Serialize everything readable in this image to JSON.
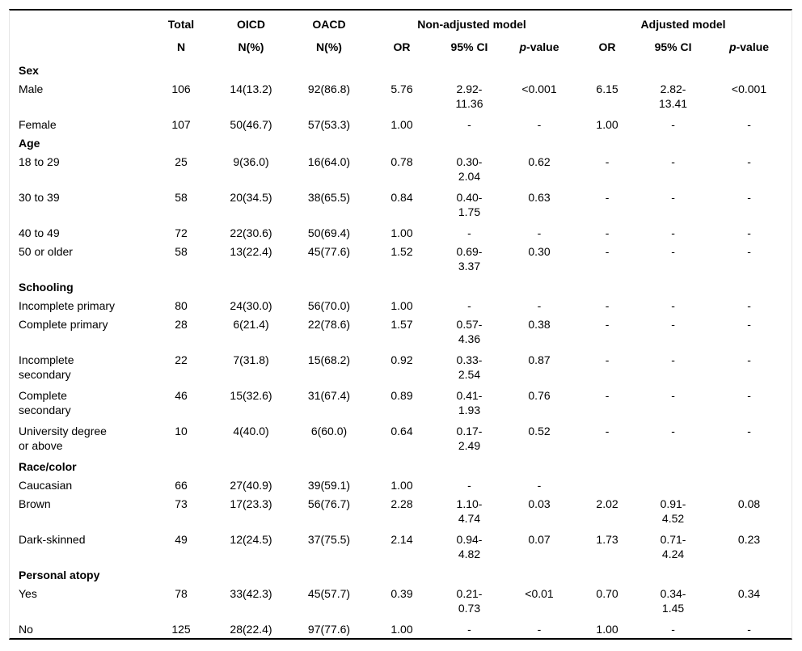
{
  "table": {
    "header": {
      "group_nonadjusted": "Non-adjusted model",
      "group_adjusted": "Adjusted model",
      "col_total": "Total",
      "col_oicd": "OICD",
      "col_oacd": "OACD",
      "sub_n": "N",
      "sub_npct_oicd": "N(%)",
      "sub_npct_oacd": "N(%)",
      "sub_or": "OR",
      "sub_ci": "95% CI",
      "sub_p_italic": "p",
      "sub_p_rest": "-value"
    },
    "cell_names": [
      "total-n",
      "oicd-n",
      "oacd-n",
      "na-or",
      "na-ci",
      "na-p",
      "adj-or",
      "adj-ci",
      "adj-p"
    ],
    "sections": [
      {
        "title": "Sex",
        "rows": [
          {
            "label": "Male",
            "cells": [
              "106",
              "14(13.2)",
              "92(86.8)",
              "5.76",
              "2.92-\n11.36",
              "<0.001",
              "6.15",
              "2.82-\n13.41",
              "<0.001"
            ]
          },
          {
            "label": "Female",
            "cells": [
              "107",
              "50(46.7)",
              "57(53.3)",
              "1.00",
              "-",
              "-",
              "1.00",
              "-",
              "-"
            ]
          }
        ]
      },
      {
        "title": "Age",
        "rows": [
          {
            "label": "18 to 29",
            "cells": [
              "25",
              "9(36.0)",
              "16(64.0)",
              "0.78",
              "0.30-\n2.04",
              "0.62",
              "-",
              "-",
              "-"
            ]
          },
          {
            "label": "30 to 39",
            "cells": [
              "58",
              "20(34.5)",
              "38(65.5)",
              "0.84",
              "0.40-\n1.75",
              "0.63",
              "-",
              "-",
              "-"
            ]
          },
          {
            "label": "40 to 49",
            "cells": [
              "72",
              "22(30.6)",
              "50(69.4)",
              "1.00",
              "-",
              "-",
              "-",
              "-",
              "-"
            ]
          },
          {
            "label": "50 or older",
            "cells": [
              "58",
              "13(22.4)",
              "45(77.6)",
              "1.52",
              "0.69-\n3.37",
              "0.30",
              "-",
              "-",
              "-"
            ]
          }
        ]
      },
      {
        "title": "Schooling",
        "rows": [
          {
            "label": "Incomplete primary",
            "cells": [
              "80",
              "24(30.0)",
              "56(70.0)",
              "1.00",
              "-",
              "-",
              "-",
              "-",
              "-"
            ]
          },
          {
            "label": "Complete primary",
            "cells": [
              "28",
              "6(21.4)",
              "22(78.6)",
              "1.57",
              "0.57-\n4.36",
              "0.38",
              "-",
              "-",
              "-"
            ]
          },
          {
            "label": "Incomplete secondary",
            "cells": [
              "22",
              "7(31.8)",
              "15(68.2)",
              "0.92",
              "0.33-\n2.54",
              "0.87",
              "-",
              "-",
              "-"
            ]
          },
          {
            "label": "Complete secondary",
            "cells": [
              "46",
              "15(32.6)",
              "31(67.4)",
              "0.89",
              "0.41-\n1.93",
              "0.76",
              "-",
              "-",
              "-"
            ]
          },
          {
            "label": "University degree or above",
            "cells": [
              "10",
              "4(40.0)",
              "6(60.0)",
              "0.64",
              "0.17-\n2.49",
              "0.52",
              "-",
              "-",
              "-"
            ]
          }
        ]
      },
      {
        "title": "Race/color",
        "rows": [
          {
            "label": "Caucasian",
            "cells": [
              "66",
              "27(40.9)",
              "39(59.1)",
              "1.00",
              "-",
              "-",
              "",
              "",
              ""
            ]
          },
          {
            "label": "Brown",
            "cells": [
              "73",
              "17(23.3)",
              "56(76.7)",
              "2.28",
              "1.10-\n4.74",
              "0.03",
              "2.02",
              "0.91-\n4.52",
              "0.08"
            ]
          },
          {
            "label": "Dark-skinned",
            "cells": [
              "49",
              "12(24.5)",
              "37(75.5)",
              "2.14",
              "0.94-\n4.82",
              "0.07",
              "1.73",
              "0.71-\n4.24",
              "0.23"
            ]
          }
        ]
      },
      {
        "title": "Personal atopy",
        "rows": [
          {
            "label": "Yes",
            "cells": [
              "78",
              "33(42.3)",
              "45(57.7)",
              "0.39",
              "0.21-\n0.73",
              "<0.01",
              "0.70",
              "0.34-\n1.45",
              "0.34"
            ]
          },
          {
            "label": "No",
            "cells": [
              "125",
              "28(22.4)",
              "97(77.6)",
              "1.00",
              "-",
              "-",
              "1.00",
              "-",
              "-"
            ]
          }
        ]
      }
    ]
  }
}
